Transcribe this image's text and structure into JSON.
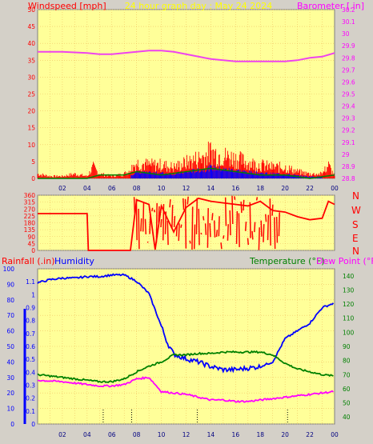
{
  "header": {
    "windspeed_label": "Windspeed [mph]",
    "title": "24 hour graph day : May 24 2024",
    "barometer_label": "Barometer [.in]"
  },
  "colors": {
    "background": "#d4d0c8",
    "plot_bg": "#ffff99",
    "grid": "#f0c060",
    "wind": "#ff0000",
    "gust": "#0000ff",
    "avg": "#008000",
    "barometer": "#ee44ee",
    "winddir": "#ff0000",
    "humidity": "#0000ff",
    "temperature": "#008000",
    "dewpoint": "#ff00ff",
    "title": "#ffff00"
  },
  "time_ticks": [
    "02",
    "04",
    "06",
    "08",
    "10",
    "12",
    "14",
    "16",
    "18",
    "20",
    "22",
    "00"
  ],
  "direction_labels": [
    "N",
    "W",
    "S",
    "E",
    "N"
  ],
  "bottom_header": {
    "rainfall_label": "Rainfall (.in)",
    "humidity_label": "Humidity",
    "temperature_label": "Temperature (°F)",
    "dewpoint_label": "Dew Point (°F)"
  },
  "chart_data": [
    {
      "type": "line",
      "title": "24 hour graph day : May 24 2024",
      "x_unit": "hour of day",
      "xlim": [
        0,
        24
      ],
      "y_left": {
        "label": "Windspeed [mph]",
        "ylim": [
          0,
          50
        ],
        "ticks": [
          "0",
          "5",
          "10",
          "15",
          "20",
          "25",
          "30",
          "35",
          "40",
          "45",
          "50"
        ]
      },
      "y_right": {
        "label": "Barometer [.in]",
        "ylim": [
          28.8,
          30.2
        ],
        "ticks": [
          "28.8",
          "28.9",
          "29",
          "29.1",
          "29.2",
          "29.3",
          "29.4",
          "29.5",
          "29.6",
          "29.7",
          "29.8",
          "29.9",
          "30",
          "30.1",
          "30.2"
        ]
      },
      "barometer": {
        "x": [
          0,
          2,
          4,
          5,
          6,
          7,
          8,
          9,
          10,
          11,
          12,
          13,
          14,
          15,
          16,
          17,
          18,
          19,
          20,
          21,
          22,
          23,
          24
        ],
        "values": [
          29.85,
          29.85,
          29.84,
          29.83,
          29.83,
          29.84,
          29.85,
          29.86,
          29.86,
          29.85,
          29.83,
          29.81,
          29.79,
          29.78,
          29.77,
          29.77,
          29.77,
          29.77,
          29.77,
          29.78,
          29.8,
          29.81,
          29.84
        ]
      },
      "wind_gust_envelope": {
        "x": [
          0,
          1,
          2,
          3,
          4,
          4.5,
          5,
          6,
          7,
          7.5,
          8,
          9,
          10,
          11,
          12,
          13,
          13.5,
          14,
          14.5,
          15,
          16,
          17,
          18,
          19,
          20,
          21,
          22,
          23,
          23.5,
          24
        ],
        "values": [
          2,
          1,
          1,
          2,
          1,
          5,
          2,
          1,
          2,
          4,
          7,
          6,
          6,
          5,
          7,
          9,
          10,
          12,
          11,
          10,
          9,
          7,
          6,
          5,
          5,
          3,
          2,
          2,
          6,
          1
        ]
      },
      "wind_avg": {
        "x": [
          0,
          4,
          5,
          7,
          8,
          10,
          12,
          14,
          16,
          18,
          20,
          22,
          24
        ],
        "values": [
          0,
          0,
          1,
          1,
          2,
          1,
          2,
          3,
          2,
          1,
          1,
          0,
          1
        ]
      }
    },
    {
      "type": "line",
      "title": "",
      "x_unit": "hour of day",
      "xlim": [
        0,
        24
      ],
      "ylim": [
        0,
        360
      ],
      "y_ticks": [
        "0",
        "45",
        "90",
        "135",
        "180",
        "225",
        "270",
        "315",
        "360"
      ],
      "direction_labels": [
        "N",
        "W",
        "S",
        "E",
        "N"
      ],
      "wind_direction": {
        "x": [
          0,
          4,
          4.1,
          7.5,
          8,
          9,
          9.5,
          10,
          11,
          12,
          13,
          14,
          15,
          16,
          17,
          18,
          19,
          20,
          21,
          22,
          23,
          23.5,
          24
        ],
        "values": [
          240,
          240,
          0,
          0,
          330,
          300,
          5,
          290,
          120,
          280,
          340,
          320,
          310,
          300,
          290,
          320,
          260,
          250,
          220,
          200,
          210,
          320,
          300
        ]
      }
    },
    {
      "type": "line",
      "title": "",
      "x_unit": "hour of day",
      "xlim": [
        0,
        24
      ],
      "y_rain": {
        "label": "Rainfall (.in)",
        "ylim": [
          0,
          1.2
        ],
        "ticks": [
          "0",
          "0.1",
          "0.2",
          "0.3",
          "0.4",
          "0.5",
          "0.6",
          "0.7",
          "0.8",
          "0.9",
          "1",
          "1.1"
        ]
      },
      "y_humidity": {
        "label": "Humidity",
        "ylim": [
          0,
          100
        ],
        "ticks": [
          "0",
          "10",
          "20",
          "30",
          "40",
          "50",
          "60",
          "70",
          "80",
          "90",
          "100"
        ]
      },
      "y_temperature": {
        "label": "Temperature (°F) Dew Point (°F)",
        "ylim": [
          35,
          145
        ],
        "ticks": [
          "40",
          "50",
          "60",
          "70",
          "80",
          "90",
          "100",
          "110",
          "120",
          "130",
          "140"
        ]
      },
      "series": [
        {
          "name": "Humidity",
          "x": [
            0,
            1,
            2,
            3,
            4,
            5,
            6,
            7,
            8,
            9,
            10,
            10.5,
            11,
            12,
            13,
            14,
            15,
            16,
            17,
            18,
            19,
            20,
            21,
            22,
            23,
            24
          ],
          "values": [
            91,
            93,
            94,
            94,
            95,
            95,
            96,
            96,
            92,
            84,
            63,
            52,
            45,
            42,
            40,
            37,
            35,
            35,
            36,
            37,
            40,
            55,
            60,
            65,
            75,
            78
          ]
        },
        {
          "name": "Temperature (°F)",
          "x": [
            0,
            2,
            4,
            5,
            6,
            7,
            8,
            9,
            10,
            11,
            12,
            13,
            14,
            15,
            16,
            17,
            18,
            19,
            20,
            21,
            22,
            23,
            24
          ],
          "values": [
            70,
            68,
            66,
            65,
            65,
            67,
            72,
            76,
            79,
            84,
            84,
            85,
            85,
            86,
            86,
            86,
            86,
            84,
            78,
            74,
            72,
            70,
            69
          ]
        },
        {
          "name": "Dew Point (°F)",
          "x": [
            0,
            2,
            4,
            5,
            6,
            7,
            8,
            9,
            10,
            11,
            12,
            13,
            14,
            15,
            16,
            17,
            18,
            19,
            20,
            21,
            22,
            23,
            24
          ],
          "values": [
            66,
            65,
            63,
            62,
            62,
            63,
            67,
            68,
            58,
            57,
            56,
            54,
            52,
            52,
            51,
            51,
            52,
            53,
            54,
            55,
            56,
            57,
            58
          ]
        }
      ]
    }
  ]
}
